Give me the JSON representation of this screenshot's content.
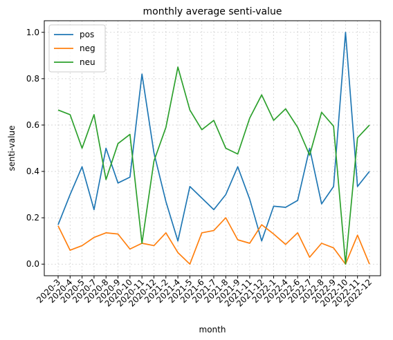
{
  "chart_data": {
    "type": "line",
    "title": "monthly average senti-value",
    "xlabel": "month",
    "ylabel": "senti-value",
    "ylim": [
      -0.05,
      1.05
    ],
    "yticks": [
      "0.0",
      "0.2",
      "0.4",
      "0.6",
      "0.8",
      "1.0"
    ],
    "grid": true,
    "legend_position": "top-left",
    "categories": [
      "2020-3",
      "2020-4",
      "2020-5",
      "2020-7",
      "2020-8",
      "2020-9",
      "2020-10",
      "2020-11",
      "2020-12",
      "2021-2",
      "2021-4",
      "2021-5",
      "2021-6",
      "2021-7",
      "2021-8",
      "2021-9",
      "2021-11",
      "2021-12",
      "2022-1",
      "2022-4",
      "2022-6",
      "2022-7",
      "2022-8",
      "2022-9",
      "2022-10",
      "2022-11",
      "2022-12"
    ],
    "series": [
      {
        "name": "pos",
        "color": "#1f77b4",
        "values": [
          0.17,
          0.3,
          0.42,
          0.235,
          0.5,
          0.35,
          0.375,
          0.82,
          0.48,
          0.27,
          0.1,
          0.335,
          0.285,
          0.235,
          0.3,
          0.42,
          0.28,
          0.1,
          0.25,
          0.245,
          0.275,
          0.5,
          0.26,
          0.335,
          1.0,
          0.335,
          0.4
        ]
      },
      {
        "name": "neg",
        "color": "#ff7f0e",
        "values": [
          0.165,
          0.06,
          0.08,
          0.115,
          0.135,
          0.13,
          0.065,
          0.09,
          0.08,
          0.135,
          0.05,
          0.0,
          0.135,
          0.145,
          0.2,
          0.105,
          0.09,
          0.17,
          0.13,
          0.085,
          0.135,
          0.03,
          0.09,
          0.07,
          0.0,
          0.125,
          0.0
        ]
      },
      {
        "name": "neu",
        "color": "#2ca02c",
        "values": [
          0.665,
          0.645,
          0.5,
          0.645,
          0.365,
          0.52,
          0.56,
          0.09,
          0.445,
          0.59,
          0.85,
          0.665,
          0.58,
          0.62,
          0.5,
          0.475,
          0.63,
          0.73,
          0.62,
          0.67,
          0.59,
          0.47,
          0.655,
          0.595,
          0.0,
          0.545,
          0.6
        ]
      }
    ]
  }
}
